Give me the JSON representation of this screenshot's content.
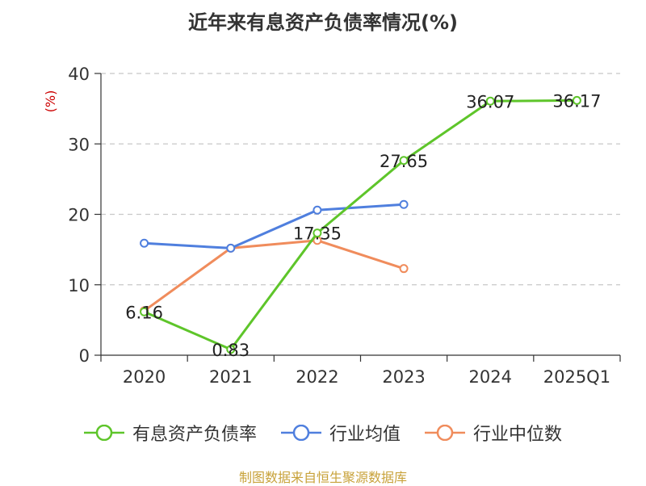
{
  "header": {
    "title": "近年来有息资产负债率情况(%)"
  },
  "footer": {
    "source": "制图数据来自恒生聚源数据库"
  },
  "chart_data": {
    "type": "line",
    "title": "近年来有息资产负债率情况(%)",
    "xlabel": "",
    "ylabel": "(%)",
    "categories": [
      "2020",
      "2021",
      "2022",
      "2023",
      "2024",
      "2025Q1"
    ],
    "ylim": [
      0,
      40
    ],
    "yticks": [
      0,
      10,
      20,
      30,
      40
    ],
    "grid": true,
    "legend_position": "bottom",
    "series": [
      {
        "name": "有息资产负债率",
        "color": "#5ec52a",
        "values": [
          6.16,
          0.83,
          17.35,
          27.65,
          36.07,
          36.17
        ],
        "show_labels": true
      },
      {
        "name": "行业均值",
        "color": "#4f7fde",
        "values": [
          15.9,
          15.2,
          20.6,
          21.4,
          null,
          null
        ],
        "show_labels": false
      },
      {
        "name": "行业中位数",
        "color": "#f08c5c",
        "values": [
          6.3,
          15.2,
          16.3,
          12.3,
          null,
          null
        ],
        "show_labels": false
      }
    ]
  }
}
